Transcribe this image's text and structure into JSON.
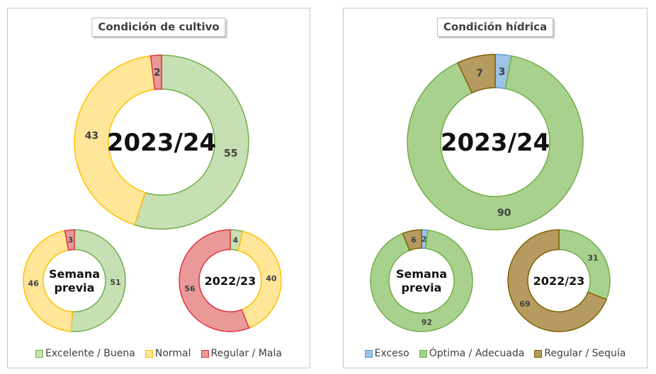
{
  "chart_data": [
    {
      "type": "donut",
      "title": "Condición de cultivo",
      "legend": [
        {
          "name": "Excelente / Buena",
          "fill": "#c6e0b4",
          "stroke": "#70ad47"
        },
        {
          "name": "Normal",
          "fill": "#ffe699",
          "stroke": "#ffc000"
        },
        {
          "name": "Regular / Mala",
          "fill": "#ea9999",
          "stroke": "#e0333f"
        }
      ],
      "donuts": [
        {
          "label": "2023/24",
          "values": [
            55,
            43,
            2
          ]
        },
        {
          "label": "Semana previa",
          "values": [
            51,
            46,
            3
          ]
        },
        {
          "label": "2022/23",
          "values": [
            4,
            40,
            56
          ]
        }
      ]
    },
    {
      "type": "donut",
      "title": "Condición hídrica",
      "legend": [
        {
          "name": "Exceso",
          "fill": "#9dc3e6",
          "stroke": "#5b9bd5"
        },
        {
          "name": "Óptima / Adecuada",
          "fill": "#a9d18e",
          "stroke": "#70ad47"
        },
        {
          "name": "Regular / Sequía",
          "fill": "#b59b60",
          "stroke": "#806000"
        }
      ],
      "donuts": [
        {
          "label": "2023/24",
          "values": [
            3,
            90,
            7
          ]
        },
        {
          "label": "Semana previa",
          "values": [
            2,
            92,
            6
          ]
        },
        {
          "label": "2022/23",
          "values": [
            0,
            31,
            69
          ]
        }
      ]
    }
  ]
}
